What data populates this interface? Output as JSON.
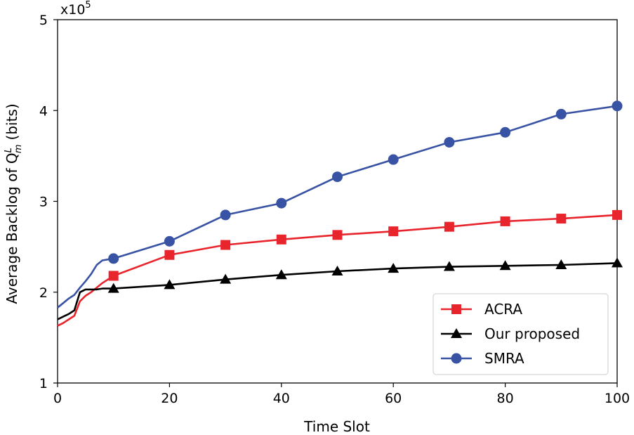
{
  "chart_data": {
    "type": "line",
    "xlabel": "Time Slot",
    "ylabel": "Average Backlog of Q",
    "ylabel_sup": "L",
    "ylabel_sub": "m",
    "ylabel_unit": "(bits)",
    "y_multiplier": "x10",
    "y_multiplier_exp": "5",
    "xlim": [
      0,
      100
    ],
    "ylim": [
      1,
      5
    ],
    "xticks": [
      "0",
      "20",
      "40",
      "60",
      "80",
      "100"
    ],
    "yticks": [
      "1",
      "2",
      "3",
      "4",
      "5"
    ],
    "legend_position": "bottom-right",
    "series": [
      {
        "name": "ACRA",
        "color": "#e8242c",
        "marker": "square",
        "x": [
          0,
          1,
          2,
          3,
          4,
          5,
          6,
          7,
          8,
          9,
          10,
          20,
          30,
          40,
          50,
          60,
          70,
          80,
          90,
          100
        ],
        "values": [
          1.63,
          1.66,
          1.7,
          1.74,
          1.9,
          1.96,
          2.0,
          2.05,
          2.1,
          2.14,
          2.18,
          2.41,
          2.52,
          2.58,
          2.63,
          2.67,
          2.72,
          2.78,
          2.81,
          2.85
        ],
        "markers_x": [
          10,
          20,
          30,
          40,
          50,
          60,
          70,
          80,
          90,
          100
        ]
      },
      {
        "name": "Our proposed",
        "color": "#000000",
        "marker": "triangle",
        "x": [
          0,
          1,
          2,
          3,
          4,
          5,
          6,
          7,
          8,
          9,
          10,
          20,
          30,
          40,
          50,
          60,
          70,
          80,
          90,
          100
        ],
        "values": [
          1.7,
          1.73,
          1.76,
          1.8,
          2.0,
          2.03,
          2.03,
          2.03,
          2.04,
          2.04,
          2.04,
          2.08,
          2.14,
          2.19,
          2.23,
          2.26,
          2.28,
          2.29,
          2.3,
          2.32
        ],
        "markers_x": [
          10,
          20,
          30,
          40,
          50,
          60,
          70,
          80,
          90,
          100
        ]
      },
      {
        "name": "SMRA",
        "color": "#3852a4",
        "marker": "circle",
        "x": [
          0,
          1,
          2,
          3,
          4,
          5,
          6,
          7,
          8,
          9,
          10,
          20,
          30,
          40,
          50,
          60,
          70,
          80,
          90,
          100
        ],
        "values": [
          1.83,
          1.88,
          1.93,
          1.97,
          2.05,
          2.12,
          2.2,
          2.3,
          2.35,
          2.36,
          2.37,
          2.56,
          2.85,
          2.98,
          3.27,
          3.46,
          3.65,
          3.76,
          3.96,
          4.05
        ],
        "markers_x": [
          10,
          20,
          30,
          40,
          50,
          60,
          70,
          80,
          90,
          100
        ]
      }
    ]
  }
}
